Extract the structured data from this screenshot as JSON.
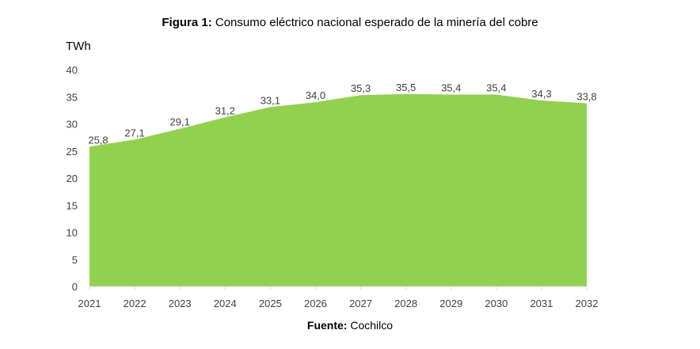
{
  "figure": {
    "title_prefix": "Figura 1:",
    "title_text": " Consumo eléctrico nacional esperado de la minería del cobre",
    "source_prefix": "Fuente:",
    "source_text": " Cochilco"
  },
  "chart_data": {
    "type": "area",
    "x": [
      "2021",
      "2022",
      "2023",
      "2024",
      "2025",
      "2026",
      "2027",
      "2028",
      "2029",
      "2030",
      "2031",
      "2032"
    ],
    "series": [
      {
        "values": [
          25.8,
          27.1,
          29.1,
          31.2,
          33.1,
          34.0,
          35.3,
          35.5,
          35.4,
          35.4,
          34.3,
          33.8
        ]
      }
    ],
    "data_labels": [
      "25,8",
      "27,1",
      "29,1",
      "31,2",
      "33,1",
      "34,0",
      "35,3",
      "35,5",
      "35,4",
      "35,4",
      "34,3",
      "33,8"
    ],
    "ylabel": "TWh",
    "ylim": [
      0,
      40
    ],
    "yticks": [
      0,
      5,
      10,
      15,
      20,
      25,
      30,
      35,
      40
    ],
    "grid": false,
    "legend": "none",
    "fill_color": "#92D050"
  }
}
